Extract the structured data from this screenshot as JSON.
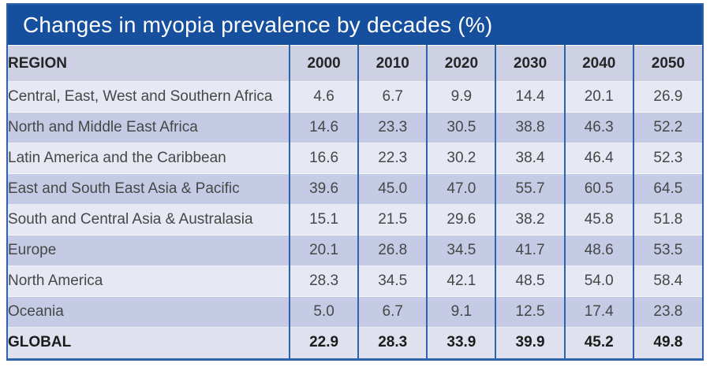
{
  "title": "Changes in myopia prevalence by decades (%)",
  "colors": {
    "title_bg": "#164f9e",
    "title_text": "#ffffff",
    "border_blue": "#2f62ad",
    "header_bg": "#cdd1e3",
    "row_light": "#e6e8f3",
    "row_dark": "#c5cbe4",
    "global_row_bg": "#dfe2ee",
    "body_text": "#474747",
    "header_text": "#262626"
  },
  "table": {
    "region_header": "REGION",
    "year_headers": [
      "2000",
      "2010",
      "2020",
      "2030",
      "2040",
      "2050"
    ],
    "rows": [
      {
        "region": "Central, East, West and Southern Africa",
        "values": [
          "4.6",
          "6.7",
          "9.9",
          "14.4",
          "20.1",
          "26.9"
        ],
        "bold": false
      },
      {
        "region": "North and Middle East Africa",
        "values": [
          "14.6",
          "23.3",
          "30.5",
          "38.8",
          "46.3",
          "52.2"
        ],
        "bold": false
      },
      {
        "region": "Latin America and the Caribbean",
        "values": [
          "16.6",
          "22.3",
          "30.2",
          "38.4",
          "46.4",
          "52.3"
        ],
        "bold": false
      },
      {
        "region": "East and South East Asia & Pacific",
        "values": [
          "39.6",
          "45.0",
          "47.0",
          "55.7",
          "60.5",
          "64.5"
        ],
        "bold": false
      },
      {
        "region": "South and Central Asia & Australasia",
        "values": [
          "15.1",
          "21.5",
          "29.6",
          "38.2",
          "45.8",
          "51.8"
        ],
        "bold": false
      },
      {
        "region": "Europe",
        "values": [
          "20.1",
          "26.8",
          "34.5",
          "41.7",
          "48.6",
          "53.5"
        ],
        "bold": false
      },
      {
        "region": "North America",
        "values": [
          "28.3",
          "34.5",
          "42.1",
          "48.5",
          "54.0",
          "58.4"
        ],
        "bold": false
      },
      {
        "region": "Oceania",
        "values": [
          "5.0",
          "6.7",
          "9.1",
          "12.5",
          "17.4",
          "23.8"
        ],
        "bold": false
      },
      {
        "region": "GLOBAL",
        "values": [
          "22.9",
          "28.3",
          "33.9",
          "39.9",
          "45.2",
          "49.8"
        ],
        "bold": true
      }
    ]
  },
  "chart_data": {
    "type": "table",
    "title": "Changes in myopia prevalence by decades (%)",
    "columns": [
      "REGION",
      "2000",
      "2010",
      "2020",
      "2030",
      "2040",
      "2050"
    ],
    "rows": [
      [
        "Central, East, West and Southern Africa",
        4.6,
        6.7,
        9.9,
        14.4,
        20.1,
        26.9
      ],
      [
        "North and Middle East Africa",
        14.6,
        23.3,
        30.5,
        38.8,
        46.3,
        52.2
      ],
      [
        "Latin America and the Caribbean",
        16.6,
        22.3,
        30.2,
        38.4,
        46.4,
        52.3
      ],
      [
        "East and South East Asia & Pacific",
        39.6,
        45.0,
        47.0,
        55.7,
        60.5,
        64.5
      ],
      [
        "South and Central Asia & Australasia",
        15.1,
        21.5,
        29.6,
        38.2,
        45.8,
        51.8
      ],
      [
        "Europe",
        20.1,
        26.8,
        34.5,
        41.7,
        48.6,
        53.5
      ],
      [
        "North America",
        28.3,
        34.5,
        42.1,
        48.5,
        54.0,
        58.4
      ],
      [
        "Oceania",
        5.0,
        6.7,
        9.1,
        12.5,
        17.4,
        23.8
      ],
      [
        "GLOBAL",
        22.9,
        28.3,
        33.9,
        39.9,
        45.2,
        49.8
      ]
    ],
    "notes": "Last row GLOBAL is a bold summary row; grid uses alternating lavender stripes with blue column separators"
  }
}
